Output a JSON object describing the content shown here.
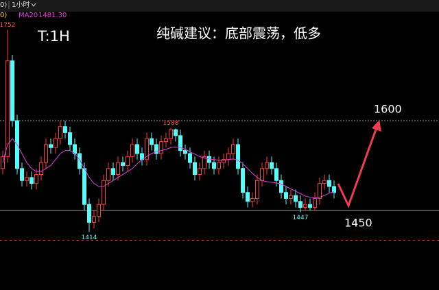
{
  "chart_data": {
    "type": "candlestick",
    "title": "纯碱建议：底部震荡，低多",
    "period_label": "T:1H",
    "header": {
      "left_fragment": "0)",
      "timeframe": "1小时",
      "ma_fragment": "0)",
      "ma_readout": "1481.30"
    },
    "ylim": [
      1317,
      1781
    ],
    "series": [
      {
        "name": "K",
        "up_color": "#ff3c3c",
        "down_color": "#54fcfc",
        "open": [
          1520,
          1540,
          1700,
          1600,
          1520,
          1500,
          1505,
          1495,
          1510,
          1530,
          1560,
          1555,
          1570,
          1590,
          1580,
          1560,
          1545,
          1520,
          1460,
          1430,
          1440,
          1460,
          1500,
          1520,
          1510,
          1530,
          1525,
          1540,
          1560,
          1545,
          1535,
          1570,
          1560,
          1545,
          1565,
          1570,
          1585,
          1575,
          1550,
          1545,
          1530,
          1510,
          1520,
          1540,
          1530,
          1520,
          1530,
          1535,
          1545,
          1560,
          1520,
          1480,
          1465,
          1470,
          1500,
          1520,
          1530,
          1520,
          1500,
          1480,
          1470,
          1475,
          1465,
          1455,
          1460,
          1455,
          1470,
          1495,
          1500,
          1490
        ],
        "high": [
          1550,
          1752,
          1710,
          1610,
          1530,
          1515,
          1515,
          1520,
          1540,
          1570,
          1570,
          1580,
          1600,
          1600,
          1590,
          1570,
          1555,
          1530,
          1470,
          1450,
          1470,
          1510,
          1530,
          1530,
          1540,
          1540,
          1550,
          1570,
          1570,
          1555,
          1580,
          1580,
          1570,
          1575,
          1580,
          1588,
          1587,
          1585,
          1560,
          1555,
          1540,
          1530,
          1550,
          1550,
          1540,
          1540,
          1545,
          1555,
          1570,
          1570,
          1530,
          1490,
          1480,
          1510,
          1530,
          1540,
          1540,
          1530,
          1510,
          1490,
          1485,
          1485,
          1475,
          1470,
          1470,
          1480,
          1505,
          1510,
          1510,
          1500
        ],
        "low": [
          1510,
          1530,
          1590,
          1510,
          1490,
          1490,
          1485,
          1485,
          1500,
          1520,
          1545,
          1545,
          1560,
          1570,
          1550,
          1535,
          1510,
          1450,
          1414,
          1420,
          1430,
          1450,
          1490,
          1500,
          1500,
          1515,
          1515,
          1530,
          1535,
          1525,
          1525,
          1550,
          1535,
          1535,
          1555,
          1560,
          1565,
          1540,
          1535,
          1520,
          1500,
          1500,
          1510,
          1520,
          1510,
          1510,
          1520,
          1525,
          1535,
          1510,
          1470,
          1455,
          1455,
          1460,
          1490,
          1510,
          1510,
          1490,
          1470,
          1460,
          1460,
          1455,
          1447,
          1450,
          1450,
          1450,
          1460,
          1485,
          1480,
          1470
        ],
        "close": [
          1540,
          1700,
          1600,
          1520,
          1500,
          1505,
          1495,
          1510,
          1530,
          1560,
          1555,
          1570,
          1590,
          1580,
          1560,
          1545,
          1520,
          1460,
          1430,
          1440,
          1460,
          1500,
          1520,
          1510,
          1530,
          1525,
          1540,
          1560,
          1545,
          1535,
          1570,
          1560,
          1545,
          1565,
          1570,
          1585,
          1575,
          1550,
          1545,
          1530,
          1510,
          1520,
          1540,
          1530,
          1520,
          1530,
          1535,
          1545,
          1560,
          1520,
          1480,
          1465,
          1470,
          1500,
          1520,
          1530,
          1520,
          1500,
          1480,
          1470,
          1475,
          1465,
          1455,
          1460,
          1455,
          1470,
          1495,
          1500,
          1490,
          1480
        ]
      },
      {
        "name": "MA20",
        "color": "#e040e0",
        "values": [
          1530,
          1560,
          1570,
          1560,
          1545,
          1530,
          1520,
          1515,
          1515,
          1520,
          1525,
          1535,
          1545,
          1550,
          1550,
          1545,
          1535,
          1520,
          1505,
          1495,
          1490,
          1490,
          1495,
          1500,
          1505,
          1510,
          1515,
          1520,
          1528,
          1535,
          1540,
          1545,
          1548,
          1550,
          1552,
          1555,
          1556,
          1555,
          1552,
          1548,
          1544,
          1540,
          1538,
          1536,
          1535,
          1534,
          1534,
          1535,
          1536,
          1534,
          1528,
          1520,
          1512,
          1505,
          1500,
          1498,
          1497,
          1496,
          1494,
          1490,
          1486,
          1482,
          1478,
          1474,
          1472,
          1471,
          1472,
          1475,
          1479,
          1481.3
        ]
      }
    ],
    "extreme_labels": [
      1752,
      1588,
      1414,
      1447
    ],
    "levels": [
      1600,
      1450,
      1400
    ]
  }
}
